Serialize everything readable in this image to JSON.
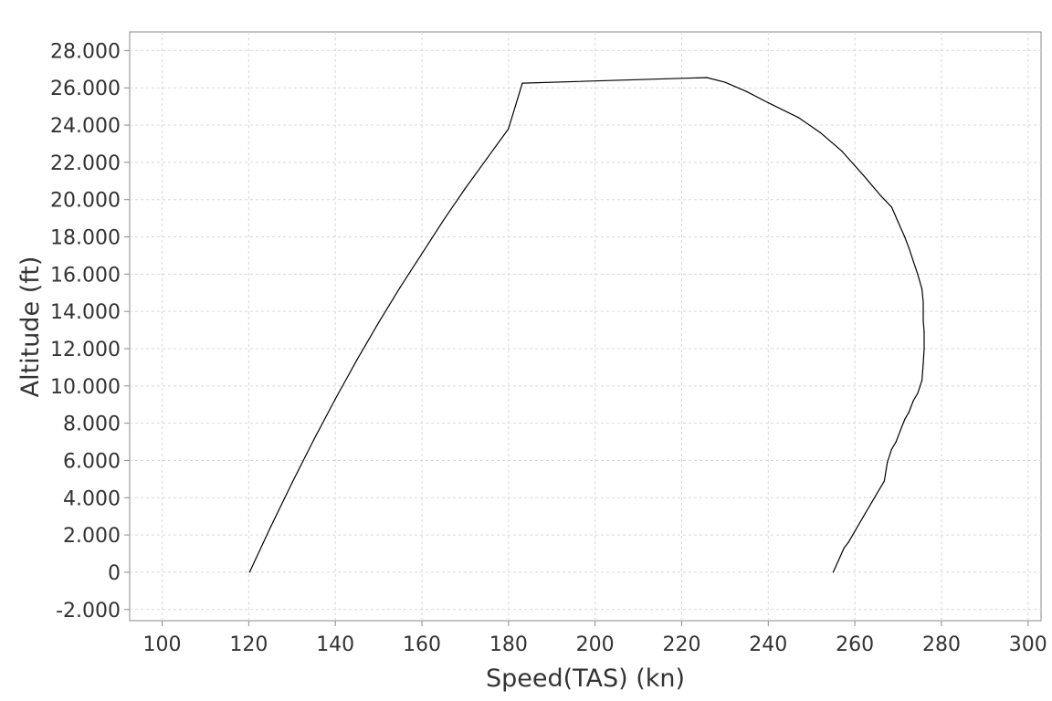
{
  "chart_data": {
    "type": "line",
    "xlabel": "Speed(TAS) (kn)",
    "ylabel": "Altitude (ft)",
    "xlim": [
      92.5,
      303
    ],
    "ylim": [
      -2600,
      29000
    ],
    "grid": true,
    "x_ticks": [
      100,
      120,
      140,
      160,
      180,
      200,
      220,
      240,
      260,
      280,
      300
    ],
    "x_tick_labels": [
      "100",
      "120",
      "140",
      "160",
      "180",
      "200",
      "220",
      "240",
      "260",
      "280",
      "300"
    ],
    "y_ticks": [
      -2000,
      0,
      2000,
      4000,
      6000,
      8000,
      10000,
      12000,
      14000,
      16000,
      18000,
      20000,
      22000,
      24000,
      26000,
      28000
    ],
    "y_tick_labels": [
      "-2.000",
      "0",
      "2.000",
      "4.000",
      "6.000",
      "8.000",
      "10.000",
      "12.000",
      "14.000",
      "16.000",
      "18.000",
      "20.000",
      "22.000",
      "24.000",
      "26.000",
      "28.000"
    ],
    "series": [
      {
        "color": "#000000",
        "points": [
          [
            120.2,
            0
          ],
          [
            125,
            2400
          ],
          [
            130,
            4800
          ],
          [
            135,
            7100
          ],
          [
            140,
            9300
          ],
          [
            145,
            11400
          ],
          [
            150,
            13400
          ],
          [
            155,
            15300
          ],
          [
            160,
            17100
          ],
          [
            165,
            18900
          ],
          [
            170,
            20600
          ],
          [
            175,
            22200
          ],
          [
            180,
            23800
          ],
          [
            183.2,
            26250
          ],
          [
            225.8,
            26550
          ],
          [
            230,
            26300
          ],
          [
            235,
            25800
          ],
          [
            240,
            25200
          ],
          [
            247,
            24400
          ],
          [
            252,
            23600
          ],
          [
            257,
            22600
          ],
          [
            262,
            21300
          ],
          [
            266,
            20200
          ],
          [
            268.5,
            19600
          ],
          [
            270,
            18800
          ],
          [
            271.5,
            18000
          ],
          [
            272.5,
            17400
          ],
          [
            273.5,
            16700
          ],
          [
            274.5,
            16000
          ],
          [
            275.5,
            15200
          ],
          [
            275.8,
            14500
          ],
          [
            275.8,
            13500
          ],
          [
            276,
            12900
          ],
          [
            276,
            12000
          ],
          [
            275.8,
            11200
          ],
          [
            275.5,
            10300
          ],
          [
            274.5,
            9600
          ],
          [
            273.5,
            9200
          ],
          [
            272.5,
            8600
          ],
          [
            271.5,
            8200
          ],
          [
            270.5,
            7600
          ],
          [
            269.5,
            7000
          ],
          [
            268.5,
            6600
          ],
          [
            267.5,
            5900
          ],
          [
            266.8,
            4900
          ],
          [
            262,
            3000
          ],
          [
            258.5,
            1600
          ],
          [
            257.5,
            1300
          ],
          [
            255,
            0
          ]
        ]
      }
    ]
  }
}
